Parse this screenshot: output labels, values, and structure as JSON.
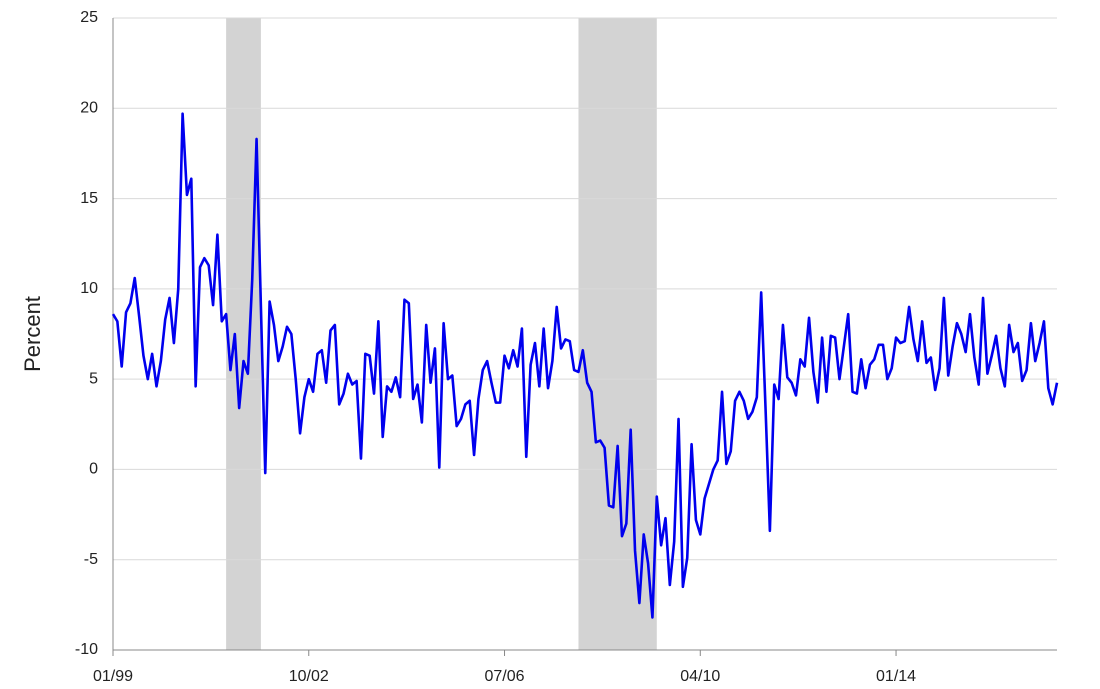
{
  "chart_data": {
    "type": "line",
    "y_label": "Percent",
    "x": [
      "01/99",
      "02/99",
      "03/99",
      "04/99",
      "05/99",
      "06/99",
      "07/99",
      "08/99",
      "09/99",
      "10/99",
      "11/99",
      "12/99",
      "01/00",
      "02/00",
      "03/00",
      "04/00",
      "05/00",
      "06/00",
      "07/00",
      "08/00",
      "09/00",
      "10/00",
      "11/00",
      "12/00",
      "01/01",
      "02/01",
      "03/01",
      "04/01",
      "05/01",
      "06/01",
      "07/01",
      "08/01",
      "09/01",
      "10/01",
      "11/01",
      "12/01",
      "01/02",
      "02/02",
      "03/02",
      "04/02",
      "05/02",
      "06/02",
      "07/02",
      "08/02",
      "09/02",
      "10/02",
      "11/02",
      "12/02",
      "01/03",
      "02/03",
      "03/03",
      "04/03",
      "05/03",
      "06/03",
      "07/03",
      "08/03",
      "09/03",
      "10/03",
      "11/03",
      "12/03",
      "01/04",
      "02/04",
      "03/04",
      "04/04",
      "05/04",
      "06/04",
      "07/04",
      "08/04",
      "09/04",
      "10/04",
      "11/04",
      "12/04",
      "01/05",
      "02/05",
      "03/05",
      "04/05",
      "05/05",
      "06/05",
      "07/05",
      "08/05",
      "09/05",
      "10/05",
      "11/05",
      "12/05",
      "01/06",
      "02/06",
      "03/06",
      "04/06",
      "05/06",
      "06/06",
      "07/06",
      "08/06",
      "09/06",
      "10/06",
      "11/06",
      "12/06",
      "01/07",
      "02/07",
      "03/07",
      "04/07",
      "05/07",
      "06/07",
      "07/07",
      "08/07",
      "09/07",
      "10/07",
      "11/07",
      "12/07",
      "01/08",
      "02/08",
      "03/08",
      "04/08",
      "05/08",
      "06/08",
      "07/08",
      "08/08",
      "09/08",
      "10/08",
      "11/08",
      "12/08",
      "01/09",
      "02/09",
      "03/09",
      "04/09",
      "05/09",
      "06/09",
      "07/09",
      "08/09",
      "09/09",
      "10/09",
      "11/09",
      "12/09",
      "01/10",
      "02/10",
      "03/10",
      "04/10",
      "05/10",
      "06/10",
      "07/10",
      "08/10",
      "09/10",
      "10/10",
      "11/10",
      "12/10",
      "01/11",
      "02/11",
      "03/11",
      "04/11",
      "05/11",
      "06/11",
      "07/11",
      "08/11",
      "09/11",
      "10/11",
      "11/11",
      "12/11",
      "01/12",
      "02/12",
      "03/12",
      "04/12",
      "05/12",
      "06/12",
      "07/12",
      "08/12",
      "09/12",
      "10/12",
      "11/12",
      "12/12",
      "01/13",
      "02/13",
      "03/13",
      "04/13",
      "05/13",
      "06/13",
      "07/13",
      "08/13",
      "09/13",
      "10/13",
      "11/13",
      "12/13",
      "01/14",
      "02/14",
      "03/14",
      "04/14",
      "05/14",
      "06/14",
      "07/14",
      "08/14",
      "09/14",
      "10/14",
      "11/14",
      "12/14",
      "01/15",
      "02/15",
      "03/15",
      "04/15",
      "05/15",
      "06/15",
      "07/15",
      "08/15",
      "09/15",
      "10/15",
      "11/15",
      "12/15",
      "01/16",
      "02/16",
      "03/16",
      "04/16",
      "05/16",
      "06/16",
      "07/16",
      "08/16",
      "09/16",
      "10/16",
      "11/16",
      "12/16",
      "01/17",
      "02/17"
    ],
    "series": [
      {
        "color": "#0000ee",
        "values": [
          8.6,
          8.2,
          5.7,
          8.7,
          9.2,
          10.6,
          8.5,
          6.3,
          5.0,
          6.4,
          4.6,
          6.0,
          8.3,
          9.5,
          7.0,
          10.0,
          19.7,
          15.2,
          16.1,
          4.6,
          11.2,
          11.7,
          11.3,
          9.1,
          13.0,
          8.2,
          8.6,
          5.5,
          7.5,
          3.4,
          6.0,
          5.3,
          10.5,
          18.3,
          9.0,
          -0.2,
          9.3,
          8.0,
          6.0,
          6.8,
          7.9,
          7.5,
          5.0,
          2.0,
          4.0,
          5.0,
          4.3,
          6.4,
          6.6,
          4.8,
          7.7,
          8.0,
          3.6,
          4.2,
          5.3,
          4.7,
          4.9,
          0.6,
          6.4,
          6.3,
          4.2,
          8.2,
          1.8,
          4.6,
          4.3,
          5.1,
          4.0,
          9.4,
          9.2,
          3.9,
          4.7,
          2.6,
          8.0,
          4.8,
          6.7,
          0.1,
          8.1,
          5.0,
          5.2,
          2.4,
          2.8,
          3.6,
          3.8,
          0.8,
          3.9,
          5.5,
          6.0,
          4.8,
          3.7,
          3.7,
          6.3,
          5.6,
          6.6,
          5.7,
          7.8,
          0.7,
          5.8,
          7.0,
          4.6,
          7.8,
          4.5,
          6.0,
          9.0,
          6.7,
          7.2,
          7.1,
          5.5,
          5.4,
          6.6,
          4.8,
          4.3,
          1.5,
          1.6,
          1.2,
          -2.0,
          -2.1,
          1.3,
          -3.7,
          -3.0,
          2.2,
          -4.5,
          -7.4,
          -3.6,
          -5.2,
          -8.2,
          -1.5,
          -4.2,
          -2.7,
          -6.4,
          -4.0,
          2.8,
          -6.5,
          -4.9,
          1.4,
          -2.8,
          -3.6,
          -1.6,
          -0.8,
          0.0,
          0.5,
          4.3,
          0.3,
          1.0,
          3.8,
          4.3,
          3.8,
          2.8,
          3.2,
          4.0,
          9.8,
          3.4,
          -3.4,
          4.7,
          3.9,
          8.0,
          5.1,
          4.8,
          4.1,
          6.1,
          5.7,
          8.4,
          5.4,
          3.7,
          7.3,
          4.3,
          7.4,
          7.3,
          5.0,
          6.8,
          8.6,
          4.3,
          4.2,
          6.1,
          4.5,
          5.8,
          6.1,
          6.9,
          6.9,
          5.0,
          5.6,
          7.3,
          7.0,
          7.1,
          9.0,
          7.2,
          6.0,
          8.2,
          5.9,
          6.2,
          4.4,
          5.6,
          9.5,
          5.2,
          6.8,
          8.1,
          7.5,
          6.5,
          8.6,
          6.2,
          4.7,
          9.5,
          5.3,
          6.3,
          7.4,
          5.6,
          4.6,
          8.0,
          6.5,
          7.0,
          4.9,
          5.5,
          8.1,
          6.0,
          7.0,
          8.2,
          4.5,
          3.6,
          4.8
        ]
      }
    ],
    "xticks": [
      "01/99",
      "10/02",
      "07/06",
      "04/10",
      "01/14"
    ],
    "ylim": [
      -10,
      25
    ],
    "yticks": [
      -10,
      -5,
      0,
      5,
      10,
      15,
      20,
      25
    ],
    "grid": true,
    "recessions": [
      {
        "start": "03/01",
        "end": "11/01"
      },
      {
        "start": "12/07",
        "end": "06/09"
      }
    ],
    "recession_color": "#d3d3d3"
  }
}
